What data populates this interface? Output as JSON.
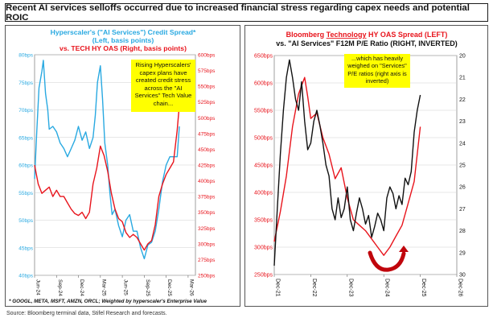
{
  "banner": {
    "title": "Recent AI services selloffs occurred due to increased financial stress regarding capex needs and potential ROIC"
  },
  "source": "Source: Bloomberg terminal data, Stifel Research and forecasts.",
  "colors": {
    "blue": "#29a9e1",
    "red": "#e8141c",
    "black": "#111111",
    "annotation_bg": "#ffff00",
    "frame": "#555555"
  },
  "chart_data": [
    {
      "type": "line",
      "title_line1": "Hyperscaler's (\"AI Services\") Credit Spread*",
      "title_line2": "(Left, basis points)",
      "title_line3": "vs. TECH HY OAS (Right, basis points)",
      "yleft": {
        "label": "Left, basis points",
        "lim": [
          40,
          80
        ],
        "ticks": [
          40,
          45,
          50,
          55,
          60,
          65,
          70,
          75,
          80
        ],
        "tick_labels": [
          "40bps",
          "45bps",
          "50bps",
          "55bps",
          "60bps",
          "65bps",
          "70bps",
          "75bps",
          "80bps"
        ]
      },
      "yright": {
        "label": "Right, basis points",
        "lim": [
          250,
          600
        ],
        "ticks": [
          250,
          275,
          300,
          325,
          350,
          375,
          400,
          425,
          450,
          475,
          500,
          525,
          550,
          575,
          600
        ],
        "tick_labels": [
          "250bps",
          "275bps",
          "300bps",
          "325bps",
          "350bps",
          "375bps",
          "400bps",
          "425bps",
          "450bps",
          "475bps",
          "500bps",
          "525bps",
          "550bps",
          "575bps",
          "600bps"
        ]
      },
      "xlim": [
        0,
        22
      ],
      "x_ticks": [
        0,
        3,
        6,
        9,
        12,
        15,
        18,
        21
      ],
      "x_tick_labels": [
        "Jun-24",
        "Sep-24",
        "Dec-24",
        "Mar-25",
        "Jun-25",
        "Sep-25",
        "Dec-25",
        "Mar-26"
      ],
      "series": [
        {
          "name": "Hyperscaler's (\"AI Services\") Credit Spread*",
          "axis": "left",
          "color": "#29a9e1",
          "x": [
            0,
            0.3,
            0.6,
            1,
            1.2,
            1.5,
            1.8,
            2,
            2.5,
            3,
            3.5,
            4,
            4.5,
            5,
            5.5,
            6,
            6.5,
            7,
            7.5,
            8,
            8.3,
            8.6,
            9,
            9.3,
            9.6,
            10,
            10.3,
            10.6,
            11,
            11.5,
            12,
            12.5,
            13,
            13.5,
            14,
            14.5,
            15,
            15.5,
            16,
            16.5,
            17,
            17.5,
            18,
            18.5,
            19,
            19.5,
            19.8
          ],
          "y": [
            57.5,
            66,
            74,
            77,
            79,
            73,
            70,
            66.5,
            67,
            66,
            64,
            63,
            61.5,
            63,
            64.5,
            67,
            64.5,
            66,
            63,
            65,
            69,
            75,
            78,
            72,
            64,
            60,
            55,
            51,
            52,
            49,
            47,
            50,
            51,
            48,
            48,
            45,
            43,
            45.5,
            46,
            48,
            52,
            57,
            60,
            61.5,
            61.5,
            61.5,
            67
          ]
        },
        {
          "name": "TECH HY OAS",
          "axis": "right",
          "color": "#e8141c",
          "x": [
            0,
            0.5,
            1,
            1.5,
            2,
            2.5,
            3,
            3.5,
            4,
            4.5,
            5,
            5.5,
            6,
            6.5,
            7,
            7.5,
            8,
            8.5,
            9,
            9.5,
            10,
            10.5,
            11,
            11.5,
            12,
            12.5,
            13,
            13.5,
            14,
            14.5,
            15,
            15.5,
            16,
            16.5,
            17,
            17.5,
            18,
            18.5,
            19,
            19.5,
            19.8
          ],
          "y": [
            425,
            395,
            380,
            385,
            390,
            375,
            385,
            375,
            375,
            365,
            355,
            348,
            345,
            350,
            340,
            350,
            395,
            420,
            455,
            440,
            415,
            380,
            355,
            340,
            335,
            318,
            310,
            315,
            310,
            300,
            290,
            300,
            305,
            330,
            375,
            395,
            410,
            420,
            430,
            480,
            520
          ]
        }
      ],
      "annotation": "Rising Hyperscalers' capex plans have created credit stress across the \"AI Services\" Tech Value chain...",
      "footnote": "* GOOGL, META, MSFT, AMZN, ORCL; Weighted by hyperscaler's Enterprise Value"
    },
    {
      "type": "line",
      "title_line1_prefix": "Bloomberg ",
      "title_line1_underlined": "Technology",
      "title_line1_suffix": " HY OAS Spread (LEFT)",
      "title_line2": "vs. \"AI Services\" F12M P/E Ratio (RIGHT, INVERTED)",
      "yleft": {
        "label": "LEFT",
        "lim": [
          250,
          650
        ],
        "ticks": [
          250,
          300,
          350,
          400,
          450,
          500,
          550,
          600,
          650
        ],
        "tick_labels": [
          "250bps",
          "300bps",
          "350bps",
          "400bps",
          "450bps",
          "500bps",
          "550bps",
          "600bps",
          "650bps"
        ]
      },
      "yright": {
        "label": "RIGHT, INVERTED",
        "lim": [
          20,
          30
        ],
        "inverted": true,
        "ticks": [
          20,
          21,
          22,
          23,
          24,
          25,
          26,
          27,
          28,
          29,
          30
        ],
        "tick_labels": [
          "20",
          "21",
          "22",
          "23",
          "24",
          "25",
          "26",
          "27",
          "28",
          "29",
          "30"
        ]
      },
      "xlim": [
        0,
        60
      ],
      "x_ticks": [
        0,
        12,
        24,
        36,
        48,
        60
      ],
      "x_tick_labels": [
        "Dec-21",
        "Dec-22",
        "Dec-23",
        "Dec-24",
        "Dec-25",
        "Dec-26"
      ],
      "series": [
        {
          "name": "Bloomberg Technology HY OAS Spread",
          "axis": "left",
          "color": "#e8141c",
          "x": [
            0,
            2,
            4,
            6,
            8,
            10,
            11,
            12,
            14,
            16,
            18,
            20,
            22,
            24,
            26,
            28,
            30,
            32,
            34,
            36,
            38,
            40,
            42,
            44,
            46,
            47,
            48
          ],
          "y": [
            310,
            365,
            430,
            520,
            580,
            610,
            575,
            535,
            545,
            500,
            470,
            425,
            445,
            390,
            350,
            340,
            330,
            315,
            300,
            285,
            300,
            320,
            340,
            380,
            420,
            470,
            520
          ]
        },
        {
          "name": "\"AI Services\" F12M P/E Ratio",
          "axis": "right",
          "color": "#111111",
          "x": [
            0,
            1,
            2,
            3,
            4,
            5,
            6,
            7,
            8,
            9,
            10,
            11,
            12,
            13,
            14,
            15,
            16,
            17,
            18,
            19,
            20,
            21,
            22,
            23,
            24,
            25,
            26,
            27,
            28,
            29,
            30,
            31,
            32,
            33,
            34,
            35,
            36,
            37,
            38,
            39,
            40,
            41,
            42,
            43,
            44,
            45,
            46,
            47,
            48
          ],
          "y": [
            29.6,
            27,
            24.5,
            22.5,
            21,
            20.2,
            21,
            22,
            22.5,
            21.2,
            23,
            24.3,
            24,
            23,
            22.5,
            23.2,
            24,
            25,
            25.5,
            27,
            27.5,
            26.5,
            27.4,
            27,
            26,
            27.5,
            28,
            27.2,
            26.5,
            27,
            27.7,
            27.3,
            28.3,
            27.8,
            27.2,
            27.5,
            28,
            26.5,
            26,
            26.3,
            27,
            26.4,
            26.8,
            25.6,
            25.9,
            25.3,
            23.5,
            22.5,
            21.8
          ]
        }
      ],
      "annotation": "...which has heavily weighed on \"Services\" P/E ratios (right axis is inverted)"
    }
  ]
}
